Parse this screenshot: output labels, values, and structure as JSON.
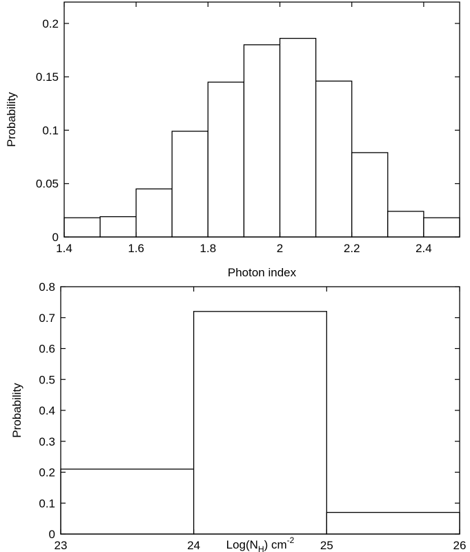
{
  "chart_data": [
    {
      "type": "bar",
      "title": "",
      "xlabel": "Photon index",
      "ylabel": "Probability",
      "xlim": [
        1.4,
        2.5
      ],
      "ylim": [
        0,
        0.22
      ],
      "x_ticks": [
        "1.4",
        "1.6",
        "1.8",
        "2",
        "2.2",
        "2.4"
      ],
      "y_ticks": [
        "0",
        "0.05",
        "0.1",
        "0.15",
        "0.2"
      ],
      "bin_edges": [
        1.4,
        1.5,
        1.6,
        1.7,
        1.8,
        1.9,
        2.0,
        2.1,
        2.2,
        2.3,
        2.4,
        2.5
      ],
      "values": [
        0.018,
        0.019,
        0.045,
        0.099,
        0.145,
        0.18,
        0.186,
        0.146,
        0.079,
        0.024,
        0.018
      ],
      "grid": false
    },
    {
      "type": "bar",
      "title": "",
      "xlabel": "Log(N",
      "xlabel_sub": "H",
      "xlabel_suffix": ") cm",
      "xlabel_sup": "-2",
      "ylabel": "Probability",
      "xlim": [
        23,
        26
      ],
      "ylim": [
        0,
        0.8
      ],
      "x_ticks": [
        "23",
        "24",
        "25",
        "26"
      ],
      "y_ticks": [
        "0",
        "0.1",
        "0.2",
        "0.3",
        "0.4",
        "0.5",
        "0.6",
        "0.7",
        "0.8"
      ],
      "bin_edges": [
        23,
        24,
        25,
        26
      ],
      "values": [
        0.21,
        0.72,
        0.07
      ],
      "grid": false
    }
  ]
}
